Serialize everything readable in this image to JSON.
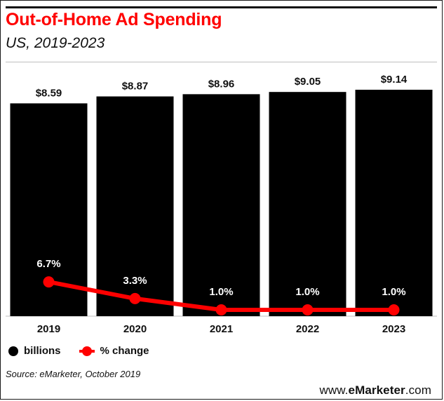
{
  "title": "Out-of-Home Ad Spending",
  "subtitle": "US, 2019-2023",
  "source": "Source: eMarketer, October 2019",
  "brand": {
    "prefix": "www.",
    "name": "eMarketer",
    "suffix": ".com"
  },
  "colors": {
    "bars": "#000000",
    "line": "#ff0000",
    "title": "#ff0000"
  },
  "legend": [
    {
      "label": "billions",
      "color": "#000000",
      "marker": "dot"
    },
    {
      "label": "% change",
      "color": "#ff0000",
      "marker": "line-dot"
    }
  ],
  "chart_data": {
    "type": "bar",
    "categories": [
      "2019",
      "2020",
      "2021",
      "2022",
      "2023"
    ],
    "series": [
      {
        "name": "billions",
        "type": "bar",
        "values": [
          8.59,
          8.87,
          8.96,
          9.05,
          9.14
        ],
        "labels": [
          "$8.59",
          "$8.87",
          "$8.96",
          "$9.05",
          "$9.14"
        ]
      },
      {
        "name": "% change",
        "type": "line",
        "values": [
          6.7,
          3.3,
          1.0,
          1.0,
          1.0
        ],
        "labels": [
          "6.7%",
          "3.3%",
          "1.0%",
          "1.0%",
          "1.0%"
        ]
      }
    ],
    "legend_position": "bottom-left",
    "grid": false
  }
}
